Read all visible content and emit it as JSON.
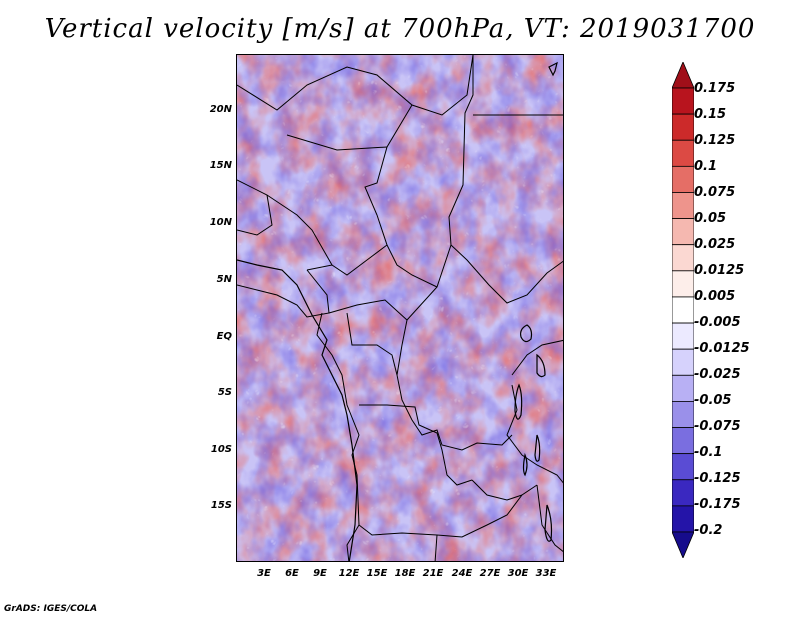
{
  "title": "Vertical velocity [m/s] at 700hPa, VT: 2019031700",
  "credit": "GrADS: IGES/COLA",
  "lat_labels": [
    "20N",
    "15N",
    "10N",
    "5N",
    "EQ",
    "5S",
    "10S",
    "15S"
  ],
  "lon_labels": [
    "3E",
    "6E",
    "9E",
    "12E",
    "15E",
    "18E",
    "21E",
    "24E",
    "27E",
    "30E",
    "33E"
  ],
  "colorbar": {
    "labels": [
      "0.175",
      "0.15",
      "0.125",
      "0.1",
      "0.075",
      "0.05",
      "0.025",
      "0.0125",
      "0.005",
      "-0.005",
      "-0.0125",
      "-0.025",
      "-0.05",
      "-0.075",
      "-0.1",
      "-0.125",
      "-0.175",
      "-0.2"
    ],
    "colors": [
      "#a00f19",
      "#b8141e",
      "#cc2a2a",
      "#dc4a44",
      "#e56e66",
      "#ee948c",
      "#f5b8b0",
      "#fbd8d2",
      "#fdeeea",
      "#ffffff",
      "#eceaff",
      "#d6d2fc",
      "#b8b0f4",
      "#9a90ea",
      "#7a6ee0",
      "#5a4cd4",
      "#3a28c0",
      "#2414a8",
      "#160c8c"
    ]
  }
}
